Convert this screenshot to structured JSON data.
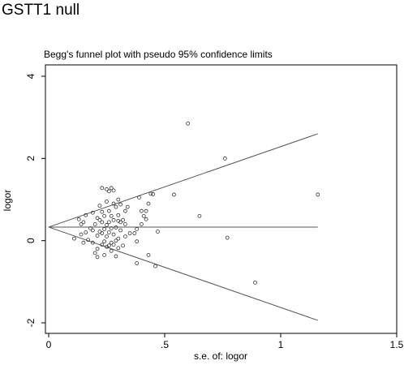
{
  "figure_title": "GSTT1 null",
  "chart_data": {
    "type": "scatter",
    "title": "Begg's funnel plot with pseudo 95% confidence limits",
    "xlabel": "s.e. of: logor",
    "ylabel": "logor",
    "xlim": [
      0,
      1.5
    ],
    "ylim": [
      -2,
      4
    ],
    "x_ticks": [
      0,
      0.5,
      1,
      1.5
    ],
    "x_tick_labels": [
      "0",
      ".5",
      "1",
      "1.5"
    ],
    "y_ticks": [
      -2,
      0,
      2,
      4
    ],
    "y_tick_labels": [
      "-2",
      "0",
      "2",
      "4"
    ],
    "pooled_estimate": 0.33,
    "funnel_limits": {
      "se_max": 1.16,
      "upper_at_max": 2.6,
      "lower_at_max": -1.94
    },
    "points": [
      [
        0.6,
        2.85
      ],
      [
        0.76,
        2.0
      ],
      [
        1.16,
        1.12
      ],
      [
        0.54,
        1.12
      ],
      [
        0.65,
        0.6
      ],
      [
        0.77,
        0.07
      ],
      [
        0.89,
        -1.02
      ],
      [
        0.47,
        0.22
      ],
      [
        0.46,
        -0.62
      ],
      [
        0.43,
        -0.35
      ],
      [
        0.44,
        1.14
      ],
      [
        0.45,
        1.13
      ],
      [
        0.43,
        0.9
      ],
      [
        0.42,
        0.72
      ],
      [
        0.42,
        0.52
      ],
      [
        0.41,
        0.6
      ],
      [
        0.4,
        0.72
      ],
      [
        0.4,
        0.4
      ],
      [
        0.39,
        1.05
      ],
      [
        0.38,
        0.28
      ],
      [
        0.38,
        -0.02
      ],
      [
        0.37,
        0.18
      ],
      [
        0.38,
        -0.55
      ],
      [
        0.35,
        0.18
      ],
      [
        0.34,
        0.82
      ],
      [
        0.33,
        0.4
      ],
      [
        0.33,
        0.72
      ],
      [
        0.33,
        0.1
      ],
      [
        0.32,
        0.5
      ],
      [
        0.32,
        -0.12
      ],
      [
        0.31,
        0.45
      ],
      [
        0.31,
        0.88
      ],
      [
        0.31,
        0.25
      ],
      [
        0.3,
        1.0
      ],
      [
        0.3,
        0.62
      ],
      [
        0.3,
        0.48
      ],
      [
        0.3,
        0.05
      ],
      [
        0.3,
        -0.18
      ],
      [
        0.29,
        0.82
      ],
      [
        0.29,
        0.32
      ],
      [
        0.29,
        0.0
      ],
      [
        0.29,
        -0.38
      ],
      [
        0.28,
        1.22
      ],
      [
        0.28,
        0.9
      ],
      [
        0.28,
        0.5
      ],
      [
        0.28,
        0.15
      ],
      [
        0.28,
        -0.1
      ],
      [
        0.27,
        1.28
      ],
      [
        0.27,
        0.6
      ],
      [
        0.27,
        0.3
      ],
      [
        0.27,
        -0.05
      ],
      [
        0.27,
        -0.25
      ],
      [
        0.26,
        1.2
      ],
      [
        0.26,
        0.72
      ],
      [
        0.26,
        0.45
      ],
      [
        0.26,
        0.2
      ],
      [
        0.26,
        -0.12
      ],
      [
        0.25,
        1.25
      ],
      [
        0.25,
        0.95
      ],
      [
        0.25,
        0.38
      ],
      [
        0.25,
        0.1
      ],
      [
        0.25,
        -0.15
      ],
      [
        0.24,
        0.6
      ],
      [
        0.24,
        0.28
      ],
      [
        0.24,
        -0.02
      ],
      [
        0.23,
        1.28
      ],
      [
        0.23,
        0.7
      ],
      [
        0.23,
        0.45
      ],
      [
        0.23,
        0.18
      ],
      [
        0.23,
        -0.1
      ],
      [
        0.22,
        0.85
      ],
      [
        0.22,
        0.5
      ],
      [
        0.22,
        0.22
      ],
      [
        0.21,
        0.55
      ],
      [
        0.21,
        0.12
      ],
      [
        0.21,
        -0.2
      ],
      [
        0.2,
        0.4
      ],
      [
        0.2,
        -0.3
      ],
      [
        0.19,
        0.68
      ],
      [
        0.19,
        0.25
      ],
      [
        0.19,
        -0.05
      ],
      [
        0.18,
        0.3
      ],
      [
        0.17,
        0.02
      ],
      [
        0.16,
        0.62
      ],
      [
        0.16,
        0.2
      ],
      [
        0.15,
        0.45
      ],
      [
        0.14,
        0.4
      ],
      [
        0.14,
        0.15
      ],
      [
        0.15,
        -0.05
      ],
      [
        0.11,
        0.05
      ],
      [
        0.13,
        0.52
      ],
      [
        0.24,
        -0.35
      ],
      [
        0.21,
        -0.4
      ]
    ]
  }
}
